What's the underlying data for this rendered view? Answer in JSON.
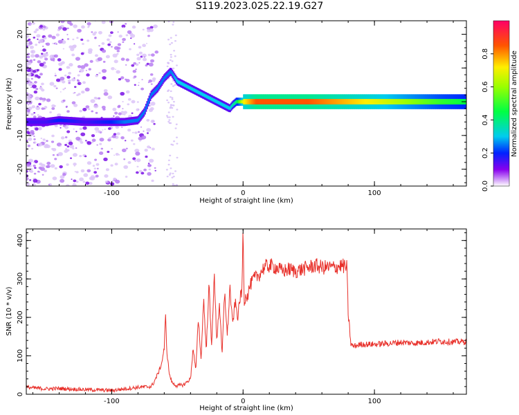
{
  "title": "S119.2023.025.22.19.G27",
  "chart_data": [
    {
      "type": "heatmap",
      "xlabel": "Height of straight line (km)",
      "ylabel": "Frequency (Hz)",
      "xlim": [
        -165,
        170
      ],
      "ylim": [
        -25,
        24
      ],
      "x_ticks": [
        "-100",
        "0",
        "100"
      ],
      "x_tick_values": [
        -100,
        0,
        100
      ],
      "y_ticks": [
        "-20",
        "-10",
        "0",
        "10",
        "20"
      ],
      "y_tick_values": [
        -20,
        -10,
        0,
        10,
        20
      ],
      "colorbar": {
        "label": "Normalized spectral amplitude",
        "range": [
          0,
          1
        ],
        "ticks": [
          "0.0",
          "0.2",
          "0.4",
          "0.6",
          "0.8"
        ],
        "tick_values": [
          0,
          0.2,
          0.4,
          0.6,
          0.8
        ]
      },
      "ridge": {
        "x": [
          -165,
          -150,
          -140,
          -120,
          -100,
          -90,
          -80,
          -75,
          -70,
          -65,
          -60,
          -55,
          -50,
          -45,
          -40,
          -35,
          -30,
          -25,
          -20,
          -15,
          -10,
          -8,
          -5,
          0,
          10,
          50,
          100,
          150,
          170
        ],
        "y": [
          -6,
          -6,
          -5.5,
          -6,
          -6,
          -6,
          -5.5,
          -3,
          2,
          4,
          7,
          9,
          6,
          5,
          4,
          3,
          2,
          1,
          0,
          -1,
          -2,
          -1,
          0,
          0,
          0,
          0,
          0,
          0,
          0
        ],
        "amplitude": [
          0.15,
          0.15,
          0.2,
          0.15,
          0.2,
          0.25,
          0.25,
          0.25,
          0.25,
          0.25,
          0.25,
          0.25,
          0.3,
          0.3,
          0.3,
          0.3,
          0.3,
          0.3,
          0.3,
          0.3,
          0.3,
          0.35,
          0.4,
          0.7,
          0.85,
          0.85,
          0.7,
          0.5,
          0.45
        ]
      }
    },
    {
      "type": "line",
      "xlabel": "Height of straight line (km)",
      "ylabel": "SNR (10 * v/v)",
      "xlim": [
        -165,
        170
      ],
      "ylim": [
        0,
        430
      ],
      "x_ticks": [
        "-100",
        "0",
        "100"
      ],
      "x_tick_values": [
        -100,
        0,
        100
      ],
      "y_ticks": [
        "0",
        "100",
        "200",
        "300",
        "400"
      ],
      "y_tick_values": [
        0,
        100,
        200,
        300,
        400
      ],
      "color": "#e8302a",
      "series": [
        {
          "x": [
            -165,
            -150,
            -140,
            -120,
            -100,
            -90,
            -80,
            -70,
            -68,
            -66,
            -64,
            -62,
            -60,
            -59,
            -58,
            -56,
            -54,
            -52,
            -50,
            -45,
            -40,
            -38,
            -36,
            -34,
            -32,
            -30,
            -28,
            -26,
            -24,
            -22,
            -20,
            -18,
            -16,
            -14,
            -12,
            -10,
            -8,
            -6,
            -4,
            -2,
            -1,
            0,
            1,
            2,
            3,
            5,
            8,
            12,
            16,
            20,
            25,
            30,
            35,
            40,
            45,
            50,
            55,
            60,
            65,
            70,
            75,
            79,
            80,
            81,
            82,
            84,
            90,
            100,
            110,
            120,
            130,
            140,
            150,
            160,
            170
          ],
          "y": [
            18,
            14,
            15,
            12,
            10,
            14,
            18,
            20,
            30,
            45,
            60,
            80,
            120,
            205,
            110,
            50,
            30,
            25,
            22,
            25,
            40,
            120,
            60,
            200,
            90,
            250,
            110,
            290,
            120,
            310,
            140,
            240,
            100,
            270,
            150,
            280,
            180,
            240,
            200,
            260,
            250,
            430,
            220,
            270,
            250,
            280,
            300,
            310,
            330,
            335,
            330,
            320,
            325,
            320,
            325,
            330,
            335,
            330,
            330,
            330,
            335,
            330,
            210,
            175,
            130,
            125,
            130,
            130,
            132,
            135,
            133,
            135,
            138,
            136,
            137
          ]
        }
      ]
    }
  ]
}
